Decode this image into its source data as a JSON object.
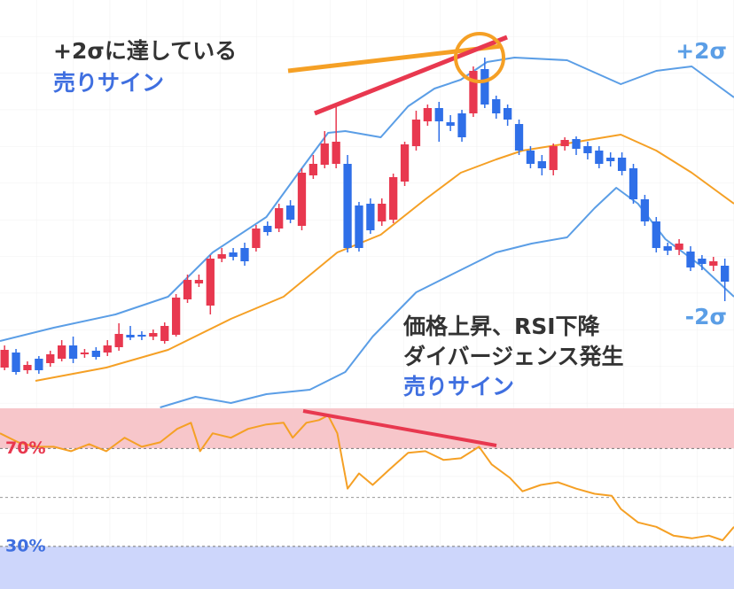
{
  "chart_data": [
    {
      "type": "candlestick",
      "annotations": [
        "+2σに達している",
        "売りサイン"
      ],
      "xlim": [
        -0.4,
        63.8
      ],
      "ylim": [
        0,
        460
      ],
      "up_color": "#e8384f",
      "down_color": "#2f6fe8",
      "x": [
        0,
        1,
        2,
        3,
        4,
        5,
        6,
        7,
        8,
        9,
        10,
        11,
        12,
        13,
        14,
        15,
        16,
        17,
        18,
        19,
        20,
        21,
        22,
        23,
        24,
        25,
        26,
        27,
        28,
        29,
        30,
        31,
        32,
        33,
        34,
        35,
        36,
        37,
        38,
        39,
        40,
        41,
        42,
        43,
        44,
        45,
        46,
        47,
        48,
        49,
        50,
        51,
        52,
        53,
        54,
        55,
        56,
        57,
        58,
        59,
        60,
        61,
        62,
        63
      ],
      "open": [
        45,
        62,
        42,
        55,
        50,
        55,
        70,
        60,
        64,
        62,
        68,
        82,
        82,
        80,
        75,
        82,
        122,
        140,
        115,
        168,
        175,
        180,
        180,
        205,
        202,
        228,
        205,
        262,
        274,
        275,
        275,
        228,
        230,
        210,
        212,
        255,
        295,
        323,
        338,
        322,
        332,
        332,
        382,
        348,
        338,
        320,
        290,
        278,
        268,
        295,
        303,
        295,
        290,
        282,
        282,
        270,
        235,
        210,
        182,
        178,
        176,
        168,
        160,
        160
      ],
      "close": [
        65,
        40,
        48,
        42,
        60,
        70,
        55,
        62,
        57,
        70,
        83,
        79,
        80,
        84,
        92,
        124,
        144,
        144,
        168,
        173,
        170,
        165,
        202,
        198,
        225,
        212,
        265,
        275,
        298,
        300,
        180,
        180,
        200,
        230,
        260,
        297,
        325,
        338,
        323,
        318,
        305,
        380,
        342,
        332,
        325,
        290,
        275,
        270,
        295,
        302,
        292,
        287,
        275,
        278,
        267,
        235,
        210,
        180,
        177,
        185,
        158,
        162,
        165,
        142
      ],
      "high": [
        70,
        66,
        52,
        58,
        64,
        76,
        80,
        66,
        68,
        76,
        95,
        92,
        86,
        88,
        96,
        128,
        150,
        150,
        172,
        180,
        180,
        186,
        206,
        210,
        230,
        234,
        270,
        285,
        312,
        340,
        285,
        232,
        236,
        236,
        264,
        300,
        335,
        342,
        345,
        330,
        336,
        385,
        395,
        352,
        342,
        325,
        295,
        285,
        298,
        305,
        306,
        300,
        295,
        288,
        288,
        275,
        240,
        215,
        186,
        190,
        182,
        172,
        170,
        168
      ],
      "low": [
        42,
        37,
        38,
        38,
        46,
        52,
        50,
        56,
        54,
        58,
        64,
        76,
        76,
        76,
        72,
        80,
        118,
        136,
        105,
        164,
        166,
        160,
        176,
        194,
        198,
        208,
        200,
        258,
        270,
        270,
        175,
        176,
        196,
        205,
        208,
        250,
        290,
        318,
        300,
        312,
        300,
        328,
        338,
        326,
        318,
        285,
        270,
        262,
        262,
        290,
        285,
        280,
        270,
        272,
        262,
        230,
        205,
        175,
        172,
        172,
        154,
        155,
        154,
        120
      ],
      "bands": [
        {
          "name": "+2σ",
          "color": "#5b9ee6",
          "x": [
            -0.4,
            4.3,
            9.7,
            14.3,
            18.2,
            22.9,
            26,
            28.3,
            29.8,
            32.9,
            35.3,
            37.6,
            39.9,
            42.2,
            44.6,
            49.2,
            53.9,
            57,
            60.1,
            63.8
          ],
          "values": [
            75,
            90,
            105,
            125,
            175,
            215,
            270,
            310,
            312,
            305,
            340,
            360,
            370,
            390,
            395,
            392,
            365,
            380,
            385,
            350
          ]
        },
        {
          "color": "#f5a025",
          "x": [
            2.7,
            8.9,
            14.3,
            19.8,
            24.4,
            29.1,
            32.9,
            36.8,
            39.9,
            43,
            45.3,
            49.2,
            53.9,
            57,
            60.1,
            63.8
          ],
          "values": [
            30,
            45,
            65,
            100,
            125,
            175,
            195,
            235,
            265,
            280,
            290,
            298,
            308,
            290,
            265,
            230
          ]
        },
        {
          "name": "-2σ",
          "color": "#5b9ee6",
          "x": [
            13.6,
            16.7,
            19.8,
            22.9,
            26.7,
            29.8,
            32.2,
            36,
            39.1,
            43,
            46.1,
            49.2,
            51.6,
            53.5,
            55.4,
            57.8,
            60.9,
            63.8
          ],
          "values": [
            0,
            12,
            5,
            15,
            20,
            40,
            80,
            130,
            150,
            175,
            185,
            192,
            225,
            248,
            230,
            190,
            160,
            125
          ]
        }
      ]
    },
    {
      "type": "line",
      "annotations": [
        "価格上昇、RSI下降",
        "ダイバージェンス発生",
        "売りサイン"
      ],
      "xlim": [
        -0.4,
        63.8
      ],
      "ylim": [
        12.6,
        86.4
      ],
      "yticks": [
        {
          "value": 70,
          "label": "70%"
        },
        {
          "value": 30,
          "label": "30%"
        }
      ],
      "midline": 50,
      "overbought_color": "#f7c6ca",
      "oversold_color": "#cdd6fb",
      "color": "#f5a025",
      "x": [
        -0.4,
        1.2,
        2.7,
        4.3,
        5.8,
        7.4,
        8.9,
        10.5,
        12,
        13.6,
        15.1,
        16.3,
        17.1,
        18.2,
        19.8,
        21.3,
        22.9,
        24.4,
        25.2,
        26.4,
        27.5,
        28.3,
        29.1,
        30,
        31,
        32.2,
        33.7,
        35.3,
        36.8,
        38.4,
        39.9,
        41.5,
        42.6,
        44.2,
        45.3,
        46.9,
        48.4,
        50,
        51.6,
        53.1,
        53.9,
        55.4,
        57,
        58.5,
        60.1,
        61.6,
        62.8,
        63.8
      ],
      "values": [
        76.2,
        72.5,
        70.7,
        70.7,
        68.9,
        71.8,
        68.9,
        74.4,
        70.7,
        72.5,
        78,
        80.5,
        68.9,
        76.2,
        74.4,
        78,
        79.8,
        80.5,
        74.4,
        80.5,
        81.6,
        83.5,
        76.2,
        53.6,
        59.8,
        55.1,
        61.6,
        68.2,
        68.9,
        65.3,
        66,
        70.7,
        63.5,
        58,
        52.5,
        55.1,
        56.2,
        53.6,
        51.5,
        50.7,
        45.3,
        39.8,
        38,
        34.4,
        33.3,
        34.4,
        32.5,
        38
      ]
    }
  ]
}
